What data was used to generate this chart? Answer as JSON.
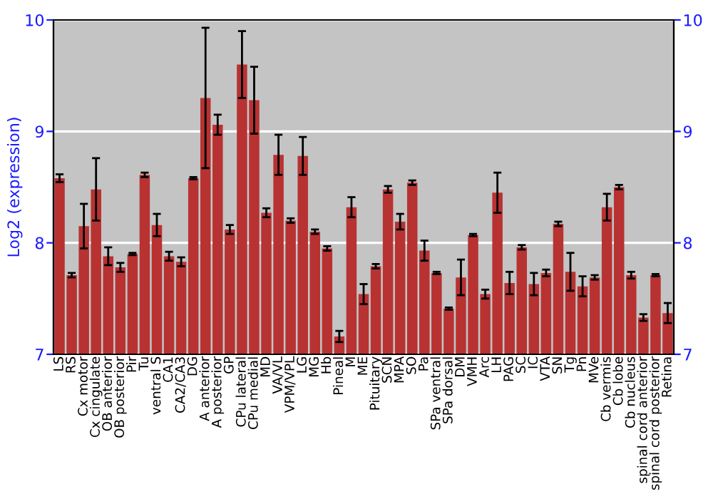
{
  "chart_data": {
    "type": "bar",
    "ylabel": "Log2 (expression)",
    "categories": [
      "LS",
      "RS",
      "Cx motor",
      "Cx cingulate",
      "OB anterior",
      "OB posterior",
      "Pir",
      "Tu",
      "ventral S",
      "CA1",
      "CA2/CA3",
      "DG",
      "A anterior",
      "A posterior",
      "GP",
      "CPu lateral",
      "CPu medial",
      "MD",
      "VA/VL",
      "VPM/VPL",
      "LG",
      "MG",
      "Hb",
      "Pineal",
      "M",
      "ME",
      "Pituitary",
      "SCN",
      "MPA",
      "SO",
      "Pa",
      "SPa ventral",
      "SPa dorsal",
      "DM",
      "VMH",
      "Arc",
      "LH",
      "PAG",
      "SC",
      "IC",
      "VTA",
      "SN",
      "Tg",
      "Pn",
      "MVe",
      "Cb vermis",
      "Cb lobe",
      "Cb nucleus",
      "spinal cord anterior",
      "spinal cord posterior",
      "Retina"
    ],
    "values": [
      8.58,
      7.71,
      8.15,
      8.48,
      7.88,
      7.78,
      7.9,
      8.61,
      8.16,
      7.88,
      7.83,
      8.58,
      9.3,
      9.06,
      8.12,
      9.6,
      9.28,
      8.27,
      8.79,
      8.2,
      8.78,
      8.1,
      7.95,
      7.16,
      8.32,
      7.54,
      7.79,
      8.48,
      8.19,
      8.54,
      7.93,
      7.73,
      7.41,
      7.69,
      8.07,
      7.54,
      8.45,
      7.64,
      7.96,
      7.63,
      7.73,
      8.17,
      7.74,
      7.61,
      7.69,
      8.32,
      8.5,
      7.71,
      7.33,
      7.71,
      7.37
    ],
    "errors": [
      0.035,
      0.02,
      0.2,
      0.28,
      0.08,
      0.04,
      0.01,
      0.02,
      0.1,
      0.04,
      0.04,
      0.01,
      0.63,
      0.09,
      0.04,
      0.3,
      0.3,
      0.04,
      0.18,
      0.02,
      0.17,
      0.02,
      0.02,
      0.05,
      0.09,
      0.09,
      0.02,
      0.03,
      0.07,
      0.02,
      0.09,
      0.01,
      0.01,
      0.16,
      0.01,
      0.04,
      0.18,
      0.1,
      0.02,
      0.1,
      0.03,
      0.02,
      0.17,
      0.09,
      0.02,
      0.12,
      0.02,
      0.03,
      0.03,
      0.01,
      0.09
    ],
    "color": "#b83232",
    "ylim": [
      7,
      10
    ],
    "yticks": [
      7,
      8,
      9,
      10
    ],
    "y2lim": [
      7,
      10
    ],
    "y2ticks": [
      7,
      8,
      9,
      10
    ],
    "grid": "y"
  }
}
